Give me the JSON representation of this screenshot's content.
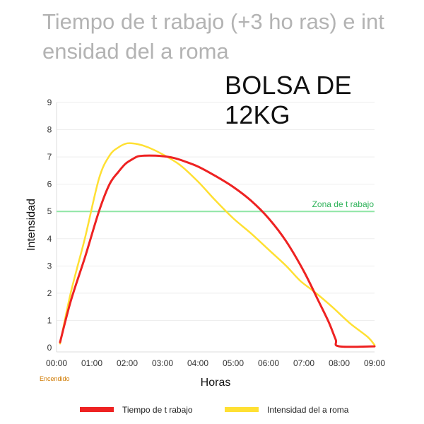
{
  "chart_data": {
    "type": "line",
    "title": "Tiempo de t  rabajo (+3 ho ras) e int ensidad del a roma",
    "subtitle": "BOLSA DE 12KG",
    "xlabel": "Horas",
    "ylabel": "Intensidad",
    "x_ticks": [
      "00:00",
      "01:00",
      "02:00",
      "03:00",
      "04:00",
      "05:00",
      "06:00",
      "07:00",
      "08:00",
      "09:00"
    ],
    "y_ticks": [
      "0",
      "1",
      "2",
      "3",
      "4",
      "5",
      "6",
      "7",
      "8",
      "9"
    ],
    "xlim": [
      0,
      9
    ],
    "ylim": [
      0,
      9
    ],
    "grid": true,
    "legend_position": "bottom",
    "x_annotation": "Encendido",
    "threshold": {
      "value": 5,
      "label": "Zona de t rabajo",
      "color": "#8fe6a6"
    },
    "series": [
      {
        "name": "Tiempo de t  rabajo",
        "color": "#ee2222",
        "x": [
          0.1,
          0.4,
          0.8,
          1.2,
          1.5,
          1.75,
          1.95,
          2.15,
          2.3,
          2.5,
          2.8,
          3.0,
          3.3,
          3.6,
          4.0,
          4.5,
          5.0,
          5.5,
          6.0,
          6.5,
          7.0,
          7.4,
          7.7,
          7.9,
          8.0,
          9.0
        ],
        "y": [
          0.2,
          1.7,
          3.3,
          5.0,
          6.0,
          6.45,
          6.75,
          6.92,
          7.02,
          7.05,
          7.05,
          7.03,
          6.97,
          6.85,
          6.65,
          6.3,
          5.9,
          5.4,
          4.75,
          3.9,
          2.8,
          1.75,
          0.95,
          0.3,
          0.05,
          0.05
        ]
      },
      {
        "name": "Intensidad del a roma",
        "color": "#ffe033",
        "x": [
          0.1,
          0.4,
          0.8,
          1.2,
          1.5,
          1.75,
          2.0,
          2.3,
          2.6,
          3.0,
          3.5,
          4.0,
          4.5,
          5.0,
          5.5,
          6.0,
          6.5,
          6.9,
          7.3,
          7.8,
          8.3,
          8.8,
          9.0
        ],
        "y": [
          0.15,
          2.0,
          4.0,
          6.2,
          7.05,
          7.35,
          7.5,
          7.47,
          7.35,
          7.1,
          6.7,
          6.1,
          5.4,
          4.75,
          4.2,
          3.6,
          3.0,
          2.45,
          2.05,
          1.5,
          0.9,
          0.4,
          0.1
        ]
      }
    ]
  }
}
